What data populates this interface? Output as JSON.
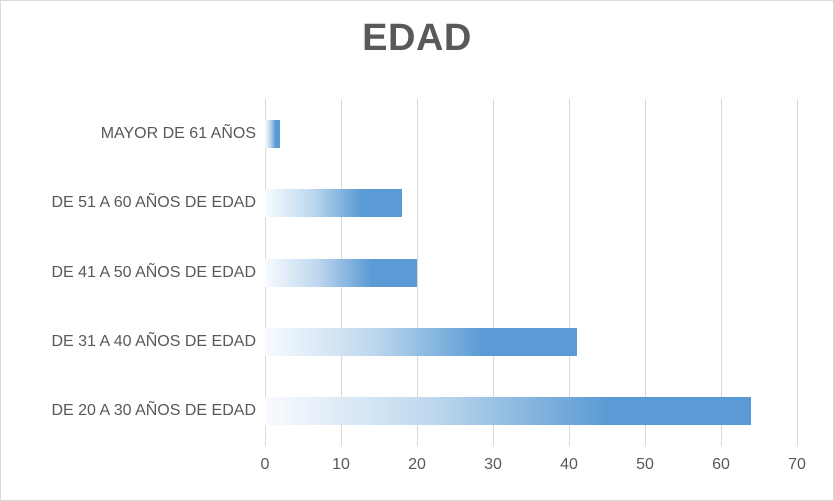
{
  "chart_data": {
    "type": "bar",
    "orientation": "horizontal",
    "title": "EDAD",
    "categories": [
      "MAYOR DE 61 AÑOS",
      "DE 51 A 60 AÑOS DE EDAD",
      "DE 41 A 50 AÑOS DE EDAD",
      "DE 31 A 40 AÑOS DE EDAD",
      "DE 20 A 30 AÑOS DE EDAD"
    ],
    "values": [
      2,
      18,
      20,
      41,
      64
    ],
    "xlabel": "",
    "ylabel": "",
    "xlim": [
      0,
      70
    ],
    "xticks": [
      0,
      10,
      20,
      30,
      40,
      50,
      60,
      70
    ],
    "grid": "vertical",
    "legend": "none",
    "colors": {
      "accent": "#5b9bd5",
      "gradient_start": "#f8fbfe",
      "gradient_mid": "#bdd7ee",
      "gridline": "#d9d9d9",
      "text": "#595959",
      "border": "#d9d9d9"
    }
  }
}
